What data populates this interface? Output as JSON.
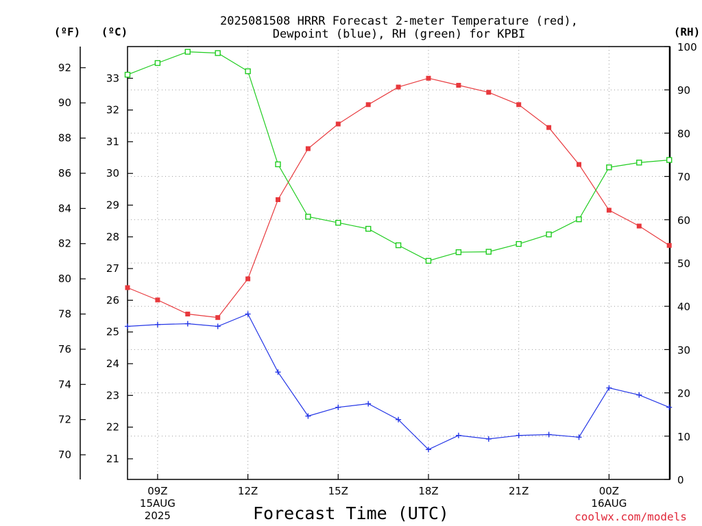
{
  "chart_data": {
    "type": "line",
    "title_line1": "2025081508 HRRR Forecast 2-meter Temperature (red),",
    "title_line2": "Dewpoint (blue), RH (green) for KPBI",
    "units": {
      "fahrenheit": "(ºF)",
      "celsius": "(ºC)",
      "rh": "(RH)"
    },
    "xlabel": "Forecast Time (UTC)",
    "credit": "coolwx.com/models",
    "x": [
      "08Z",
      "09Z",
      "10Z",
      "11Z",
      "12Z",
      "13Z",
      "14Z",
      "15Z",
      "16Z",
      "17Z",
      "18Z",
      "19Z",
      "20Z",
      "21Z",
      "22Z",
      "23Z",
      "00Z",
      "01Z",
      "02Z"
    ],
    "x_ticks": [
      {
        "index": 1,
        "lines": [
          "09Z",
          "15AUG",
          "2025"
        ]
      },
      {
        "index": 4,
        "lines": [
          "12Z"
        ]
      },
      {
        "index": 7,
        "lines": [
          "15Z"
        ]
      },
      {
        "index": 10,
        "lines": [
          "18Z"
        ]
      },
      {
        "index": 13,
        "lines": [
          "21Z"
        ]
      },
      {
        "index": 16,
        "lines": [
          "00Z",
          "16AUG"
        ]
      }
    ],
    "y_fahrenheit": {
      "ticks": [
        "70",
        "72",
        "74",
        "76",
        "78",
        "80",
        "82",
        "84",
        "86",
        "88",
        "90",
        "92"
      ],
      "range": [
        68.6,
        93.2
      ]
    },
    "y_celsius": {
      "ticks": [
        "21",
        "22",
        "23",
        "24",
        "25",
        "26",
        "27",
        "28",
        "29",
        "30",
        "31",
        "32",
        "33"
      ],
      "range": [
        20.35,
        34.0
      ]
    },
    "y_rh": {
      "ticks": [
        "0",
        "10",
        "20",
        "30",
        "40",
        "50",
        "60",
        "70",
        "80",
        "90",
        "100"
      ],
      "range": [
        0,
        100
      ]
    },
    "grid": true,
    "series": [
      {
        "name": "Temperature",
        "color": "#e8393d",
        "marker": "filled-square",
        "axis": "fahrenheit",
        "values": [
          79.5,
          78.8,
          78.0,
          77.8,
          80.0,
          84.5,
          87.4,
          88.8,
          89.9,
          90.9,
          91.4,
          91.0,
          90.6,
          89.9,
          88.6,
          86.5,
          83.9,
          83.0,
          81.9
        ]
      },
      {
        "name": "Dewpoint",
        "color": "#2436e6",
        "marker": "plus",
        "axis": "fahrenheit",
        "values": [
          77.3,
          77.4,
          77.45,
          77.3,
          78.0,
          74.7,
          72.2,
          72.7,
          72.9,
          72.0,
          70.3,
          71.1,
          70.9,
          71.1,
          71.15,
          71.0,
          73.8,
          73.4,
          72.7
        ]
      },
      {
        "name": "RH",
        "color": "#1fcc1f",
        "marker": "open-square",
        "axis": "rh",
        "values": [
          93.5,
          96.2,
          98.8,
          98.5,
          94.3,
          72.8,
          60.7,
          59.3,
          57.9,
          54.1,
          50.5,
          52.5,
          52.6,
          54.4,
          56.6,
          60.1,
          72.1,
          73.2,
          73.8
        ]
      }
    ]
  }
}
